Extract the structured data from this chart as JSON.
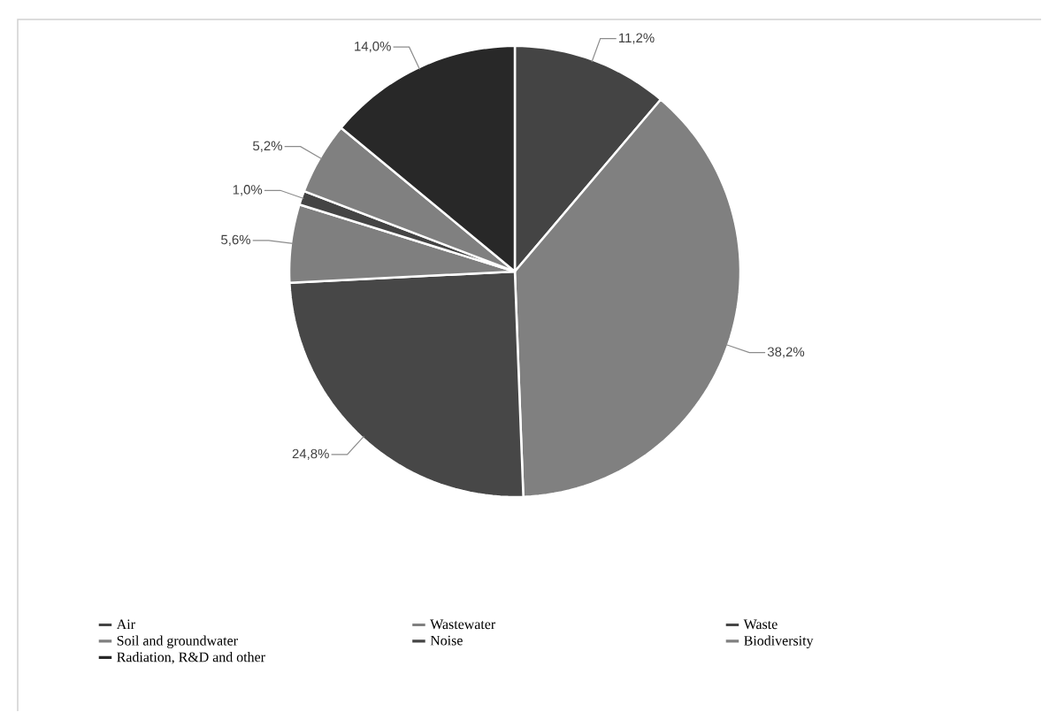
{
  "chart_data": {
    "type": "pie",
    "categories": [
      "Air",
      "Wastewater",
      "Waste",
      "Soil and groundwater",
      "Noise",
      "Biodiversity",
      "Radiation, R&D and other"
    ],
    "values": [
      11.2,
      38.2,
      24.8,
      5.6,
      1.0,
      5.2,
      14.0
    ],
    "value_labels": [
      "11,2%",
      "38,2%",
      "24,8%",
      "5,6%",
      "1,0%",
      "5,2%",
      "14,0%"
    ],
    "colors": [
      "#444444",
      "#808080",
      "#474747",
      "#7f7f7f",
      "#444444",
      "#808080",
      "#282828"
    ],
    "legend": "bottom"
  }
}
